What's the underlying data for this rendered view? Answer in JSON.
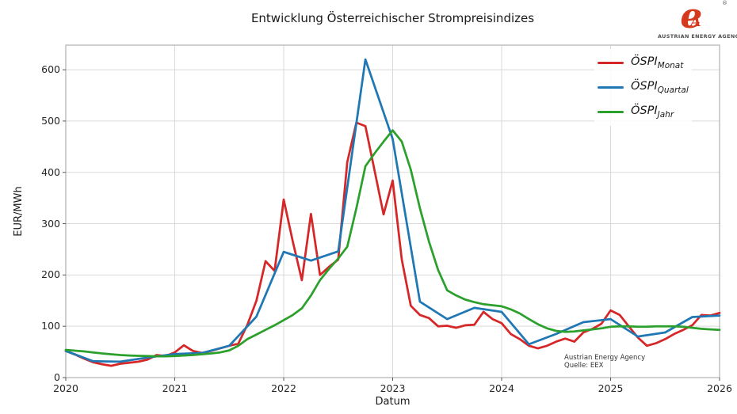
{
  "title": "Entwicklung Österreichischer Strompreisindizes",
  "xlabel": "Datum",
  "ylabel": "EUR/MWh",
  "source_note_line1": "Austrian Energy Agency",
  "source_note_line2": "Quelle: EEX",
  "logo": {
    "glyph_e": "e",
    "glyph_a": "A",
    "registered": "®",
    "caption": "AUSTRIAN ENERGY AGENCY"
  },
  "legend": [
    {
      "main": "ÖSPI",
      "sub": "Monat",
      "color": "#d62728"
    },
    {
      "main": "ÖSPI",
      "sub": "Quartal",
      "color": "#1f77b4"
    },
    {
      "main": "ÖSPI",
      "sub": "Jahr",
      "color": "#2ca02c"
    }
  ],
  "chart_data": {
    "type": "line",
    "title": "Entwicklung Österreichischer Strompreisindizes",
    "xlabel": "Datum",
    "ylabel": "EUR/MWh",
    "x_range": [
      2020,
      2026
    ],
    "x_ticks": [
      2020,
      2021,
      2022,
      2023,
      2024,
      2025,
      2026
    ],
    "y_ticks": [
      0,
      100,
      200,
      300,
      400,
      500,
      600
    ],
    "ylim": [
      0,
      648
    ],
    "grid": true,
    "legend_position": "upper right",
    "series": [
      {
        "name": "ÖSPI Monat",
        "color": "#d62728",
        "start": "2020-01",
        "step_months": 1,
        "values": [
          52,
          45,
          37,
          30,
          26,
          23,
          27,
          29,
          31,
          35,
          44,
          42,
          49,
          63,
          52,
          48,
          52,
          57,
          62,
          66,
          103,
          150,
          227,
          208,
          347,
          265,
          190,
          319,
          200,
          216,
          230,
          420,
          497,
          490,
          404,
          318,
          384,
          230,
          140,
          122,
          116,
          100,
          101,
          97,
          102,
          103,
          128,
          114,
          106,
          85,
          75,
          62,
          57,
          62,
          70,
          76,
          70,
          88,
          95,
          105,
          131,
          122,
          100,
          78,
          62,
          67,
          75,
          85,
          93,
          102,
          122,
          121,
          126
        ]
      },
      {
        "name": "ÖSPI Quartal",
        "color": "#1f77b4",
        "start": "2020-01",
        "step_months": 3,
        "values": [
          52,
          32,
          31,
          39,
          46,
          48,
          62,
          119,
          245,
          228,
          246,
          620,
          465,
          148,
          114,
          136,
          128,
          65,
          85,
          108,
          114,
          80,
          88,
          118,
          121
        ]
      },
      {
        "name": "ÖSPI Jahr",
        "color": "#2ca02c",
        "start": "2020-01",
        "step_months": 1,
        "values": [
          54,
          52.5,
          51,
          49,
          47,
          45.5,
          44,
          43,
          42.5,
          42,
          41.5,
          41.5,
          42,
          43,
          44,
          45.5,
          47,
          49,
          53,
          62,
          75,
          84,
          93,
          102,
          112,
          122,
          135,
          160,
          190,
          212,
          232,
          255,
          330,
          412,
          437,
          460,
          482,
          460,
          405,
          330,
          265,
          210,
          170,
          160,
          152,
          147,
          143,
          141,
          139,
          133,
          125,
          114,
          104,
          96,
          91,
          89,
          90,
          92,
          94,
          96,
          99,
          100,
          100,
          99,
          99,
          100,
          100,
          100,
          99,
          97,
          95,
          94,
          93
        ]
      }
    ]
  }
}
